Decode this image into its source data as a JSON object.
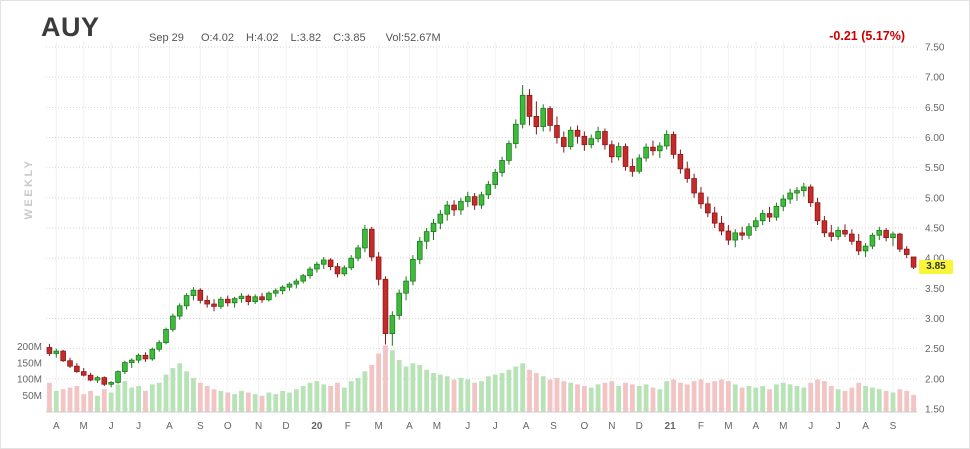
{
  "header": {
    "symbol": "AUY",
    "date": "Sep 29",
    "open": "O:4.02",
    "high": "H:4.02",
    "low": "L:3.82",
    "close": "C:3.85",
    "volume": "Vol:52.67M",
    "change": "-0.21 (5.17%)",
    "change_color": "#cc0000"
  },
  "left_axis": {
    "timeframe": "WEEKLY",
    "volume_ticks": [
      {
        "label": "200M",
        "value": 200
      },
      {
        "label": "150M",
        "value": 150
      },
      {
        "label": "100M",
        "value": 100
      },
      {
        "label": "50M",
        "value": 50
      }
    ]
  },
  "price_axis": {
    "ticks": [
      {
        "label": "7.50",
        "value": 7.5
      },
      {
        "label": "7.00",
        "value": 7.0
      },
      {
        "label": "6.50",
        "value": 6.5
      },
      {
        "label": "6.00",
        "value": 6.0
      },
      {
        "label": "5.50",
        "value": 5.5
      },
      {
        "label": "5.00",
        "value": 5.0
      },
      {
        "label": "4.50",
        "value": 4.5
      },
      {
        "label": "4.00",
        "value": 4.0
      },
      {
        "label": "3.50",
        "value": 3.5
      },
      {
        "label": "3.00",
        "value": 3.0
      },
      {
        "label": "2.50",
        "value": 2.5
      },
      {
        "label": "2.00",
        "value": 2.0
      },
      {
        "label": "1.50",
        "value": 1.5
      }
    ],
    "last_price": "3.85",
    "last_price_bg": "#f9f63a"
  },
  "x_axis": {
    "ticks": [
      {
        "label": "A",
        "week": 1
      },
      {
        "label": "M",
        "week": 5
      },
      {
        "label": "J",
        "week": 9
      },
      {
        "label": "J",
        "week": 13
      },
      {
        "label": "A",
        "week": 17.5
      },
      {
        "label": "S",
        "week": 22
      },
      {
        "label": "O",
        "week": 26
      },
      {
        "label": "N",
        "week": 30.5
      },
      {
        "label": "D",
        "week": 34.5
      },
      {
        "label": "20",
        "week": 39,
        "bold": true
      },
      {
        "label": "F",
        "week": 43.5
      },
      {
        "label": "M",
        "week": 48
      },
      {
        "label": "A",
        "week": 52.5
      },
      {
        "label": "M",
        "week": 56.5
      },
      {
        "label": "J",
        "week": 61
      },
      {
        "label": "J",
        "week": 65
      },
      {
        "label": "A",
        "week": 69.5
      },
      {
        "label": "S",
        "week": 73.5
      },
      {
        "label": "O",
        "week": 78
      },
      {
        "label": "N",
        "week": 82
      },
      {
        "label": "D",
        "week": 86
      },
      {
        "label": "21",
        "week": 90.5,
        "bold": true
      },
      {
        "label": "F",
        "week": 95
      },
      {
        "label": "M",
        "week": 99
      },
      {
        "label": "A",
        "week": 103
      },
      {
        "label": "M",
        "week": 107
      },
      {
        "label": "J",
        "week": 111
      },
      {
        "label": "J",
        "week": 115
      },
      {
        "label": "A",
        "week": 119
      },
      {
        "label": "S",
        "week": 123
      }
    ]
  },
  "chart_data": {
    "type": "candlestick",
    "title": "AUY weekly candlestick chart with volume",
    "symbol": "AUY",
    "timeframe": "WEEKLY",
    "x_span": "Apr 2019 - Sep 2021, one candle per week",
    "price_range": [
      1.5,
      7.5
    ],
    "grid_step": 0.5,
    "volume_axis_max_m": 200,
    "last_change": "-0.21 (5.17%)",
    "last_ohlc": {
      "open": 4.02,
      "high": 4.02,
      "low": 3.82,
      "close": 3.85,
      "volume_m": 52.67
    },
    "candle_fields": [
      "open",
      "high",
      "low",
      "close",
      "volume_m"
    ],
    "colors": {
      "up": "#3fba3f",
      "up_border": "#157a15",
      "down": "#c62b2b",
      "down_border": "#8a1414",
      "vol_up": "#b7e3b7",
      "vol_down": "#f3c4c4"
    },
    "candles": [
      [
        2.52,
        2.58,
        2.38,
        2.42,
        90
      ],
      [
        2.42,
        2.5,
        2.35,
        2.46,
        65
      ],
      [
        2.46,
        2.48,
        2.28,
        2.3,
        70
      ],
      [
        2.3,
        2.35,
        2.18,
        2.21,
        75
      ],
      [
        2.21,
        2.26,
        2.1,
        2.12,
        80
      ],
      [
        2.12,
        2.18,
        2.04,
        2.06,
        55
      ],
      [
        2.06,
        2.1,
        1.96,
        1.98,
        65
      ],
      [
        1.98,
        2.05,
        1.93,
        2.02,
        50
      ],
      [
        2.02,
        2.04,
        1.88,
        1.91,
        70
      ],
      [
        1.91,
        1.96,
        1.86,
        1.94,
        60
      ],
      [
        1.94,
        2.14,
        1.92,
        2.12,
        85
      ],
      [
        2.12,
        2.3,
        2.08,
        2.27,
        95
      ],
      [
        2.27,
        2.34,
        2.18,
        2.31,
        75
      ],
      [
        2.31,
        2.42,
        2.26,
        2.39,
        80
      ],
      [
        2.39,
        2.44,
        2.28,
        2.33,
        65
      ],
      [
        2.33,
        2.52,
        2.3,
        2.49,
        85
      ],
      [
        2.49,
        2.64,
        2.45,
        2.6,
        90
      ],
      [
        2.6,
        2.85,
        2.57,
        2.82,
        115
      ],
      [
        2.82,
        3.08,
        2.78,
        3.04,
        135
      ],
      [
        3.04,
        3.25,
        2.98,
        3.21,
        150
      ],
      [
        3.21,
        3.42,
        3.15,
        3.38,
        125
      ],
      [
        3.38,
        3.52,
        3.3,
        3.47,
        105
      ],
      [
        3.47,
        3.5,
        3.25,
        3.3,
        90
      ],
      [
        3.3,
        3.38,
        3.18,
        3.24,
        80
      ],
      [
        3.24,
        3.32,
        3.12,
        3.2,
        70
      ],
      [
        3.2,
        3.36,
        3.16,
        3.32,
        65
      ],
      [
        3.32,
        3.38,
        3.2,
        3.26,
        60
      ],
      [
        3.26,
        3.36,
        3.18,
        3.33,
        55
      ],
      [
        3.33,
        3.42,
        3.26,
        3.37,
        65
      ],
      [
        3.37,
        3.4,
        3.22,
        3.28,
        60
      ],
      [
        3.28,
        3.4,
        3.24,
        3.36,
        55
      ],
      [
        3.36,
        3.42,
        3.26,
        3.31,
        50
      ],
      [
        3.31,
        3.45,
        3.28,
        3.42,
        60
      ],
      [
        3.42,
        3.5,
        3.36,
        3.46,
        55
      ],
      [
        3.46,
        3.55,
        3.4,
        3.52,
        65
      ],
      [
        3.52,
        3.6,
        3.46,
        3.57,
        60
      ],
      [
        3.57,
        3.66,
        3.5,
        3.62,
        70
      ],
      [
        3.62,
        3.74,
        3.58,
        3.71,
        80
      ],
      [
        3.71,
        3.86,
        3.66,
        3.82,
        90
      ],
      [
        3.82,
        3.94,
        3.76,
        3.9,
        95
      ],
      [
        3.9,
        4.02,
        3.82,
        3.97,
        85
      ],
      [
        3.97,
        4.0,
        3.8,
        3.86,
        80
      ],
      [
        3.86,
        3.92,
        3.68,
        3.74,
        90
      ],
      [
        3.74,
        3.88,
        3.7,
        3.84,
        75
      ],
      [
        3.84,
        4.05,
        3.8,
        4.0,
        95
      ],
      [
        4.0,
        4.22,
        3.95,
        4.17,
        105
      ],
      [
        4.17,
        4.55,
        4.1,
        4.48,
        125
      ],
      [
        4.48,
        4.52,
        3.95,
        4.02,
        145
      ],
      [
        4.02,
        4.1,
        3.55,
        3.65,
        180
      ],
      [
        3.65,
        3.7,
        2.57,
        2.75,
        205
      ],
      [
        2.75,
        3.12,
        2.55,
        3.05,
        190
      ],
      [
        3.05,
        3.48,
        2.98,
        3.42,
        160
      ],
      [
        3.42,
        3.7,
        3.3,
        3.62,
        140
      ],
      [
        3.62,
        4.05,
        3.55,
        3.98,
        150
      ],
      [
        3.98,
        4.35,
        3.9,
        4.28,
        145
      ],
      [
        4.28,
        4.5,
        4.15,
        4.44,
        130
      ],
      [
        4.44,
        4.65,
        4.3,
        4.58,
        120
      ],
      [
        4.58,
        4.8,
        4.48,
        4.73,
        115
      ],
      [
        4.73,
        4.95,
        4.62,
        4.88,
        110
      ],
      [
        4.88,
        4.96,
        4.7,
        4.8,
        100
      ],
      [
        4.8,
        5.0,
        4.72,
        4.94,
        105
      ],
      [
        4.94,
        5.1,
        4.85,
        5.02,
        100
      ],
      [
        5.02,
        5.08,
        4.8,
        4.88,
        90
      ],
      [
        4.88,
        5.1,
        4.82,
        5.05,
        95
      ],
      [
        5.05,
        5.28,
        4.98,
        5.22,
        110
      ],
      [
        5.22,
        5.48,
        5.15,
        5.42,
        115
      ],
      [
        5.42,
        5.68,
        5.35,
        5.62,
        120
      ],
      [
        5.62,
        5.95,
        5.55,
        5.9,
        130
      ],
      [
        5.9,
        6.3,
        5.82,
        6.22,
        140
      ],
      [
        6.22,
        6.87,
        6.15,
        6.7,
        150
      ],
      [
        6.7,
        6.8,
        6.2,
        6.35,
        130
      ],
      [
        6.35,
        6.6,
        6.05,
        6.18,
        120
      ],
      [
        6.18,
        6.55,
        6.1,
        6.48,
        110
      ],
      [
        6.48,
        6.52,
        6.1,
        6.2,
        100
      ],
      [
        6.2,
        6.35,
        5.9,
        6.0,
        105
      ],
      [
        6.0,
        6.1,
        5.75,
        5.85,
        95
      ],
      [
        5.85,
        6.18,
        5.8,
        6.12,
        90
      ],
      [
        6.12,
        6.2,
        5.9,
        6.02,
        85
      ],
      [
        6.02,
        6.1,
        5.78,
        5.88,
        80
      ],
      [
        5.88,
        6.05,
        5.82,
        5.98,
        75
      ],
      [
        5.98,
        6.18,
        5.92,
        6.1,
        85
      ],
      [
        6.1,
        6.15,
        5.8,
        5.88,
        90
      ],
      [
        5.88,
        5.95,
        5.58,
        5.68,
        95
      ],
      [
        5.68,
        5.92,
        5.62,
        5.85,
        80
      ],
      [
        5.85,
        5.9,
        5.45,
        5.52,
        90
      ],
      [
        5.52,
        5.65,
        5.35,
        5.44,
        85
      ],
      [
        5.44,
        5.72,
        5.4,
        5.66,
        80
      ],
      [
        5.66,
        5.9,
        5.6,
        5.84,
        85
      ],
      [
        5.84,
        5.95,
        5.7,
        5.78,
        75
      ],
      [
        5.78,
        5.92,
        5.66,
        5.86,
        70
      ],
      [
        5.86,
        6.12,
        5.8,
        6.05,
        95
      ],
      [
        6.05,
        6.1,
        5.65,
        5.72,
        100
      ],
      [
        5.72,
        5.8,
        5.4,
        5.48,
        90
      ],
      [
        5.48,
        5.6,
        5.25,
        5.32,
        85
      ],
      [
        5.32,
        5.4,
        5.0,
        5.08,
        95
      ],
      [
        5.08,
        5.18,
        4.82,
        4.9,
        100
      ],
      [
        4.9,
        5.02,
        4.68,
        4.75,
        90
      ],
      [
        4.75,
        4.85,
        4.5,
        4.58,
        95
      ],
      [
        4.58,
        4.7,
        4.38,
        4.45,
        100
      ],
      [
        4.45,
        4.55,
        4.22,
        4.3,
        95
      ],
      [
        4.3,
        4.48,
        4.18,
        4.42,
        85
      ],
      [
        4.42,
        4.52,
        4.3,
        4.38,
        75
      ],
      [
        4.38,
        4.58,
        4.32,
        4.52,
        80
      ],
      [
        4.52,
        4.68,
        4.45,
        4.62,
        75
      ],
      [
        4.62,
        4.8,
        4.55,
        4.74,
        80
      ],
      [
        4.74,
        4.85,
        4.6,
        4.68,
        70
      ],
      [
        4.68,
        4.92,
        4.62,
        4.86,
        85
      ],
      [
        4.86,
        5.05,
        4.78,
        4.98,
        90
      ],
      [
        4.98,
        5.15,
        4.9,
        5.08,
        85
      ],
      [
        5.08,
        5.18,
        4.95,
        5.12,
        80
      ],
      [
        5.12,
        5.25,
        5.02,
        5.18,
        75
      ],
      [
        5.18,
        5.22,
        4.85,
        4.92,
        90
      ],
      [
        4.92,
        5.0,
        4.55,
        4.62,
        100
      ],
      [
        4.62,
        4.7,
        4.35,
        4.42,
        95
      ],
      [
        4.42,
        4.55,
        4.28,
        4.36,
        80
      ],
      [
        4.36,
        4.52,
        4.3,
        4.46,
        70
      ],
      [
        4.46,
        4.56,
        4.35,
        4.4,
        65
      ],
      [
        4.4,
        4.48,
        4.22,
        4.28,
        75
      ],
      [
        4.28,
        4.4,
        4.05,
        4.12,
        90
      ],
      [
        4.12,
        4.25,
        4.02,
        4.2,
        80
      ],
      [
        4.2,
        4.42,
        4.15,
        4.38,
        75
      ],
      [
        4.38,
        4.52,
        4.3,
        4.46,
        70
      ],
      [
        4.46,
        4.5,
        4.28,
        4.34,
        65
      ],
      [
        4.34,
        4.44,
        4.2,
        4.4,
        60
      ],
      [
        4.4,
        4.42,
        4.1,
        4.15,
        70
      ],
      [
        4.15,
        4.2,
        4.0,
        4.06,
        65
      ],
      [
        4.02,
        4.02,
        3.82,
        3.85,
        52.67
      ]
    ]
  }
}
